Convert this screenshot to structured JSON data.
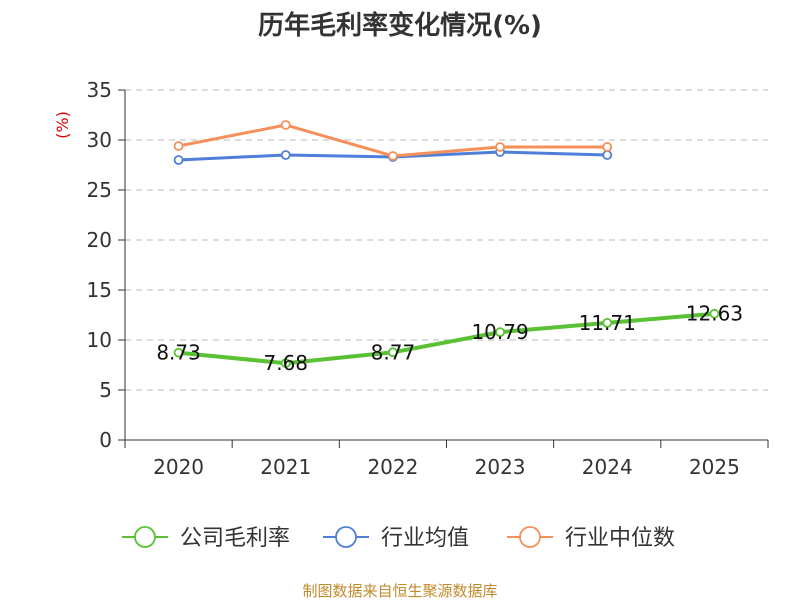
{
  "chart_data": {
    "type": "line",
    "title": "历年毛利率变化情况(%)",
    "ylabel": "(%)",
    "xlabel": "",
    "categories": [
      "2020",
      "2021",
      "2022",
      "2023",
      "2024",
      "2025"
    ],
    "ylim": [
      0,
      35
    ],
    "yticks": [
      0,
      5,
      10,
      15,
      20,
      25,
      30,
      35
    ],
    "grid": true,
    "legend_position": "bottom",
    "series": [
      {
        "name": "公司毛利率",
        "color": "#5ac134",
        "values": [
          8.73,
          7.68,
          8.77,
          10.79,
          11.71,
          12.63
        ],
        "labels": [
          "8.73",
          "7.68",
          "8.77",
          "10.79",
          "11.71",
          "12.63"
        ]
      },
      {
        "name": "行业均值",
        "color": "#4e7fd8",
        "values": [
          28.0,
          28.5,
          28.3,
          28.8,
          28.5,
          null
        ]
      },
      {
        "name": "行业中位数",
        "color": "#f5905a",
        "values": [
          29.4,
          31.5,
          28.4,
          29.3,
          29.3,
          null
        ]
      }
    ],
    "source": "制图数据来自恒生聚源数据库"
  }
}
